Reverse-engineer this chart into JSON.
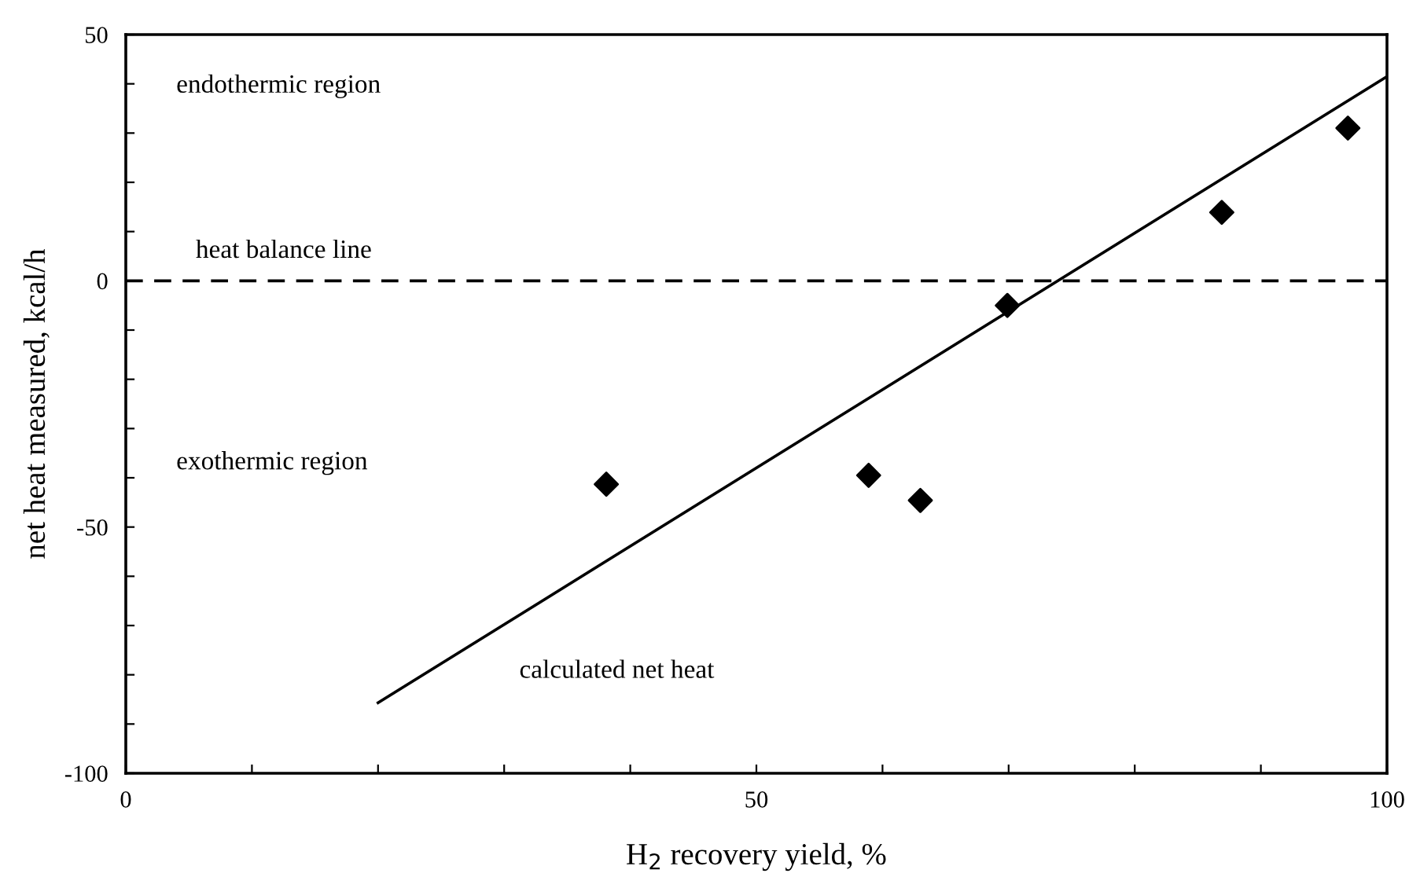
{
  "chart_data": {
    "type": "scatter",
    "xlabel": "H$_{2}$ recovery yield, %",
    "ylabel": "net heat measured, kcal/h",
    "series": [
      {
        "color": "#000000",
        "marker": "diamond",
        "x": [
          38.1,
          58.9,
          63.0,
          69.9,
          86.9,
          96.9
        ],
        "values": [
          -41.3,
          -39.5,
          -44.6,
          -5.0,
          13.9,
          31.0
        ]
      },
      {
        "type": "line",
        "name": "calculated net heat",
        "color": "#000000",
        "marker": "none",
        "line_style": "solid",
        "x": [
          20,
          100
        ],
        "values": [
          -85.7,
          41.5
        ]
      }
    ],
    "xlim": [
      0,
      100
    ],
    "ylim": [
      -100,
      50
    ],
    "xticks": [
      0,
      {
        "value": 10,
        "label": null
      },
      {
        "value": 20,
        "label": null
      },
      {
        "value": 30,
        "label": null
      },
      {
        "value": 40,
        "label": null
      },
      50,
      {
        "value": 60,
        "label": null
      },
      {
        "value": 70,
        "label": null
      },
      {
        "value": 80,
        "label": null
      },
      {
        "value": 90,
        "label": null
      },
      100
    ],
    "yticks": [
      -100,
      {
        "value": -90,
        "label": null
      },
      {
        "value": -80,
        "label": null
      },
      {
        "value": -70,
        "label": null
      },
      {
        "value": -60,
        "label": null
      },
      -50,
      {
        "value": -40,
        "label": null
      },
      {
        "value": -30,
        "label": null
      },
      {
        "value": -20,
        "label": null
      },
      {
        "value": -10,
        "label": null
      },
      0,
      {
        "value": 10,
        "label": null
      },
      {
        "value": 20,
        "label": null
      },
      {
        "value": 30,
        "label": null
      },
      {
        "value": 40,
        "label": null
      },
      50
    ],
    "ref_lines": [
      {
        "axis": "y",
        "value": 0,
        "label": "heat balance line",
        "color": "#000000",
        "line_style": "dashed"
      }
    ],
    "annotations": [
      "endothermic region",
      "exothermic region"
    ],
    "grid": false,
    "legend": false
  }
}
